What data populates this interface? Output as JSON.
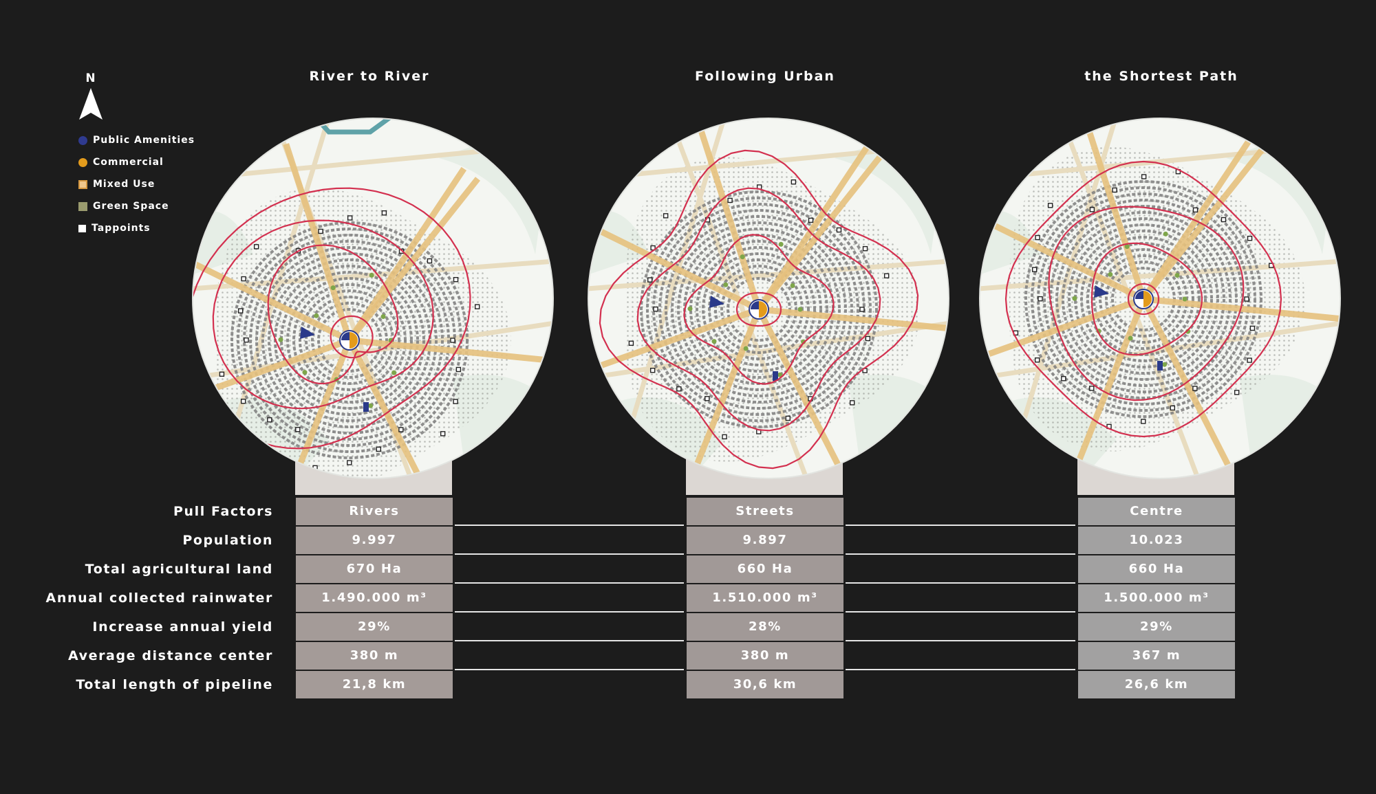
{
  "north_label": "N",
  "legend": [
    {
      "label": "Public Amenities",
      "color": "#2f3a8f",
      "shape": "circle"
    },
    {
      "label": "Commercial",
      "color": "#e39b1c",
      "shape": "circle"
    },
    {
      "label": "Mixed Use",
      "color": "#f0c78c",
      "shape": "square-outlined"
    },
    {
      "label": "Green Space",
      "color": "#9a9b6e",
      "shape": "square"
    },
    {
      "label": "Tappoints",
      "color": "#ffffff",
      "shape": "square"
    }
  ],
  "columns": [
    {
      "title": "River to River",
      "cell_color": "#a49b98"
    },
    {
      "title": "Following Urban",
      "cell_color": "#a19997"
    },
    {
      "title": "the Shortest Path",
      "cell_color": "#a2a1a1"
    }
  ],
  "rows": [
    {
      "label": "Pull Factors",
      "values": [
        "Rivers",
        "Streets",
        "Centre"
      ]
    },
    {
      "label": "Population",
      "values": [
        "9.997",
        "9.897",
        "10.023"
      ]
    },
    {
      "label": "Total agricultural land",
      "values": [
        "670 Ha",
        "660 Ha",
        "660 Ha"
      ]
    },
    {
      "label": "Annual collected rainwater",
      "values": [
        "1.490.000 m³",
        "1.510.000 m³",
        "1.500.000 m³"
      ]
    },
    {
      "label": "Increase annual yield",
      "values": [
        "29%",
        "28%",
        "29%"
      ]
    },
    {
      "label": "Average distance center",
      "values": [
        "380 m",
        "380 m",
        "367 m"
      ]
    },
    {
      "label": "Total length of pipeline",
      "values": [
        "21,8 km",
        "30,6 km",
        "26,6 km"
      ]
    }
  ],
  "colors": {
    "background": "#1c1c1c",
    "contour": "#d3304f",
    "road": "#e8dcbf",
    "main_road": "#e6c17e",
    "river": "#5fa2a8",
    "map_base": "#f4f6f2",
    "green_area": "#e6eee6",
    "pedestal": "#dcd7d3"
  }
}
